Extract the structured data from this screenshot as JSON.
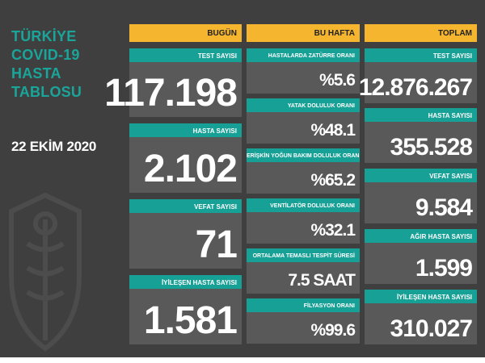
{
  "title": [
    "TÜRKİYE",
    "COVID-19",
    "HASTA",
    "TABLOSU"
  ],
  "date": "22 EKİM 2020",
  "headers": {
    "today": "BUGÜN",
    "week": "BU HAFTA",
    "total": "TOPLAM"
  },
  "today": [
    {
      "label": "TEST SAYISI",
      "value": "117.198"
    },
    {
      "label": "HASTA SAYISI",
      "value": "2.102"
    },
    {
      "label": "VEFAT SAYISI",
      "value": "71"
    },
    {
      "label": "İYİLEŞEN HASTA SAYISI",
      "value": "1.581"
    }
  ],
  "week": [
    {
      "label": "HASTALARDA ZATÜRRE ORANI",
      "value": "%5.6"
    },
    {
      "label": "YATAK DOLULUK ORANI",
      "value": "%48.1"
    },
    {
      "label": "ERİŞKİN YOĞUN BAKIM DOLULUK ORANI",
      "value": "%65.2"
    },
    {
      "label": "VENTİLATÖR DOLULUK ORANI",
      "value": "%32.1"
    },
    {
      "label": "ORTALAMA TEMASLI TESPİT SÜRESİ",
      "value": "7.5 SAAT"
    },
    {
      "label": "FİLYASYON ORANI",
      "value": "%99.6"
    }
  ],
  "total": [
    {
      "label": "TEST SAYISI",
      "value": "12.876.267"
    },
    {
      "label": "HASTA SAYISI",
      "value": "355.528"
    },
    {
      "label": "VEFAT SAYISI",
      "value": "9.584"
    },
    {
      "label": "AĞIR HASTA SAYISI",
      "value": "1.599"
    },
    {
      "label": "İYİLEŞEN HASTA SAYISI",
      "value": "310.027"
    }
  ],
  "colors": {
    "background": "#3f3f3f",
    "card": "#595959",
    "label": "#16a096",
    "header": "#f5b52e",
    "title": "#1aa59a"
  }
}
